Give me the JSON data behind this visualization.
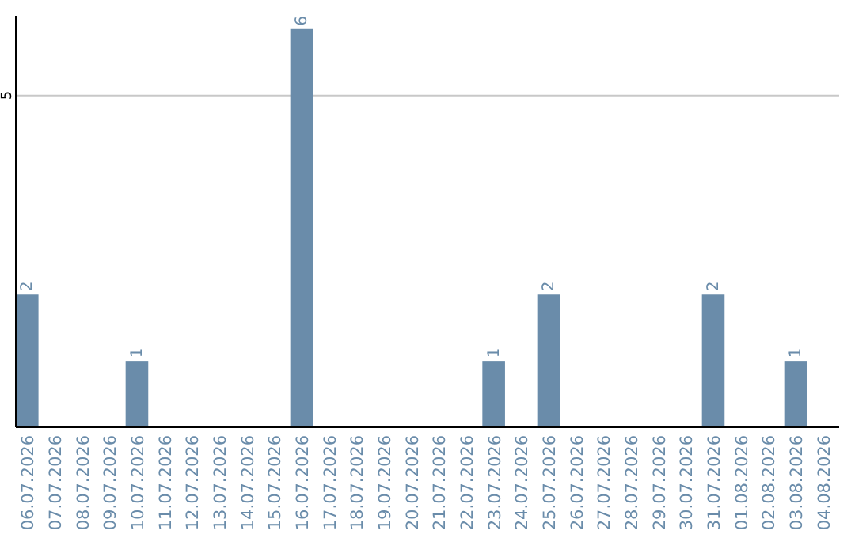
{
  "chart_data": {
    "type": "bar",
    "categories": [
      "06.07.2026",
      "07.07.2026",
      "08.07.2026",
      "09.07.2026",
      "10.07.2026",
      "11.07.2026",
      "12.07.2026",
      "13.07.2026",
      "14.07.2026",
      "15.07.2026",
      "16.07.2026",
      "17.07.2026",
      "18.07.2026",
      "19.07.2026",
      "20.07.2026",
      "21.07.2026",
      "22.07.2026",
      "23.07.2026",
      "24.07.2026",
      "25.07.2026",
      "26.07.2026",
      "27.07.2026",
      "28.07.2026",
      "29.07.2026",
      "30.07.2026",
      "31.07.2026",
      "01.08.2026",
      "02.08.2026",
      "03.08.2026",
      "04.08.2026"
    ],
    "values": [
      2,
      0,
      0,
      0,
      1,
      0,
      0,
      0,
      0,
      0,
      6,
      0,
      0,
      0,
      0,
      0,
      0,
      1,
      0,
      2,
      0,
      0,
      0,
      0,
      0,
      2,
      0,
      0,
      1,
      0
    ],
    "value_labels": [
      "2",
      null,
      null,
      null,
      "1",
      null,
      null,
      null,
      null,
      null,
      "6",
      null,
      null,
      null,
      null,
      null,
      null,
      "1",
      null,
      "2",
      null,
      null,
      null,
      null,
      null,
      "2",
      null,
      null,
      "1",
      null
    ],
    "color": "#6a8caa",
    "ylim": [
      0,
      6.2
    ],
    "yticks": [
      5
    ],
    "grid": "y"
  }
}
